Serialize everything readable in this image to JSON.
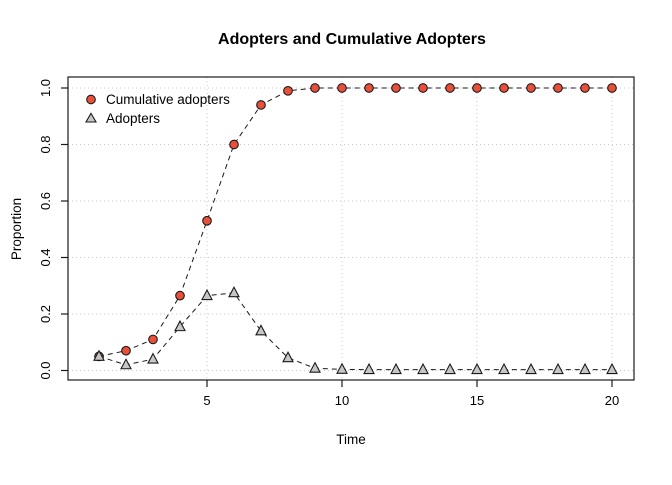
{
  "title": "Adopters and Cumulative Adopters",
  "colors": {
    "cumulative_fill": "#e8503a",
    "adopters_fill": "#c6c6c6",
    "line": "#1a1a1a",
    "grid": "#c9c9c9"
  },
  "legend": {
    "position": "top-left",
    "items": [
      {
        "label": "Cumulative adopters",
        "marker": "circle"
      },
      {
        "label": "Adopters",
        "marker": "triangle"
      }
    ]
  },
  "chart_data": {
    "type": "line",
    "title": "Adopters and Cumulative Adopters",
    "xlabel": "Time",
    "ylabel": "Proportion",
    "x": [
      1,
      2,
      3,
      4,
      5,
      6,
      7,
      8,
      9,
      10,
      11,
      12,
      13,
      14,
      15,
      16,
      17,
      18,
      19,
      20
    ],
    "series": [
      {
        "name": "Cumulative adopters",
        "marker": "circle",
        "color": "#e8503a",
        "values": [
          0.05,
          0.07,
          0.11,
          0.265,
          0.53,
          0.8,
          0.94,
          0.99,
          1.0,
          1.0,
          1.0,
          1.0,
          1.0,
          1.0,
          1.0,
          1.0,
          1.0,
          1.0,
          1.0,
          1.0
        ]
      },
      {
        "name": "Adopters",
        "marker": "triangle",
        "color": "#c6c6c6",
        "values": [
          0.05,
          0.02,
          0.04,
          0.155,
          0.265,
          0.275,
          0.14,
          0.045,
          0.008,
          0.004,
          0.003,
          0.003,
          0.003,
          0.003,
          0.003,
          0.003,
          0.003,
          0.003,
          0.003,
          0.003
        ]
      }
    ],
    "xlim": [
      1,
      20
    ],
    "ylim": [
      0,
      1
    ],
    "x_ticks": [
      5,
      10,
      15,
      20
    ],
    "x_tick_labels": [
      "5",
      "10",
      "15",
      "20"
    ],
    "y_ticks": [
      0,
      0.2,
      0.4,
      0.6,
      0.8,
      1.0
    ],
    "y_tick_labels": [
      "0.0",
      "0.2",
      "0.4",
      "0.6",
      "0.8",
      "1.0"
    ],
    "grid": "dotted",
    "line_style": "dashed",
    "legend_position": "top-left"
  }
}
